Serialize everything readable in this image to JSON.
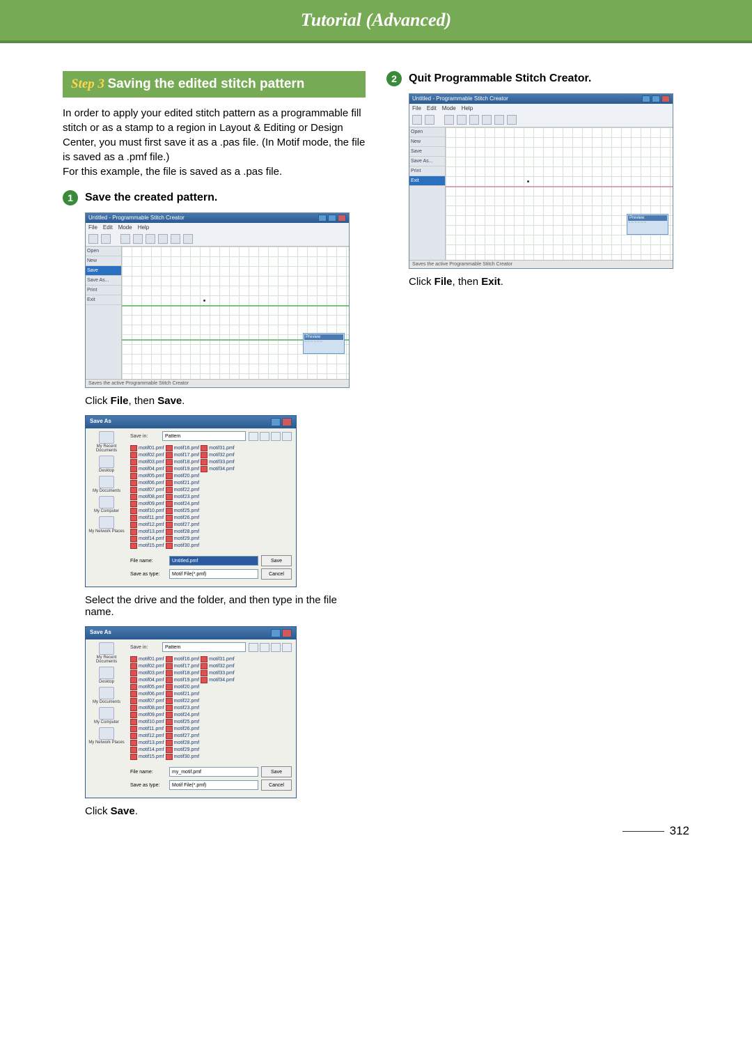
{
  "header": {
    "title": "Tutorial (Advanced)"
  },
  "page_number": "312",
  "step": {
    "label": "Step 3",
    "title": "Saving the edited stitch pattern",
    "intro": "In order to apply your edited stitch pattern as a programmable fill stitch or as a stamp to a region in Layout & Editing or Design Center, you must first save it as a .pas file. (In Motif mode, the file is saved as a .pmf file.)\nFor this example, the file is saved as a .pas file."
  },
  "sub1": {
    "num": "1",
    "title": "Save the created pattern.",
    "caption1_pre": "Click ",
    "caption1_b1": "File",
    "caption1_mid": ", then ",
    "caption1_b2": "Save",
    "caption1_post": ".",
    "caption2": "Select the drive and the folder, and then type in the file name.",
    "caption3_pre": "Click ",
    "caption3_b1": "Save",
    "caption3_post": "."
  },
  "sub2": {
    "num": "2",
    "title": "Quit Programmable Stitch Creator.",
    "caption_pre": "Click ",
    "caption_b1": "File",
    "caption_mid": ", then ",
    "caption_b2": "Exit",
    "caption_post": "."
  },
  "app": {
    "title": "Untitled - Programmable Stitch Creator",
    "menus": [
      "File",
      "Edit",
      "Mode",
      "Help"
    ],
    "side": [
      "Open",
      "New",
      "Save",
      "Save As...",
      "",
      "Print",
      "",
      "Exit"
    ],
    "side_selected_a": "Save",
    "side_selected_b": "Exit",
    "status": "Saves the active Programmable Stitch Creator",
    "preview_title": "Preview"
  },
  "dialog": {
    "title": "Save As",
    "savein_label": "Save in:",
    "savein_value": "Pattern",
    "places": [
      "My Recent Documents",
      "Desktop",
      "My Documents",
      "My Computer",
      "My Network Places"
    ],
    "files_col1": [
      "motif01.pmf",
      "motif02.pmf",
      "motif03.pmf",
      "motif04.pmf",
      "motif05.pmf",
      "motif06.pmf",
      "motif07.pmf",
      "motif08.pmf",
      "motif09.pmf",
      "motif10.pmf",
      "motif11.pmf",
      "motif12.pmf",
      "motif13.pmf",
      "motif14.pmf",
      "motif15.pmf"
    ],
    "files_col2": [
      "motif16.pmf",
      "motif17.pmf",
      "motif18.pmf",
      "motif19.pmf",
      "motif20.pmf",
      "motif21.pmf",
      "motif22.pmf",
      "motif23.pmf",
      "motif24.pmf",
      "motif25.pmf",
      "motif26.pmf",
      "motif27.pmf",
      "motif28.pmf",
      "motif29.pmf",
      "motif30.pmf"
    ],
    "files_col3": [
      "motif31.pmf",
      "motif32.pmf",
      "motif33.pmf",
      "motif34.pmf"
    ],
    "filename_label": "File name:",
    "filename_value_a": "Untitled.pmf",
    "filename_value_b": "my_motif.pmf",
    "filetype_label": "Save as type:",
    "filetype_value": "Motif File(*.pmf)",
    "save_btn": "Save",
    "cancel_btn": "Cancel"
  },
  "colors": {
    "green": "#77aa55",
    "yellow": "#ffd54a",
    "badge": "#3a8a3a"
  }
}
